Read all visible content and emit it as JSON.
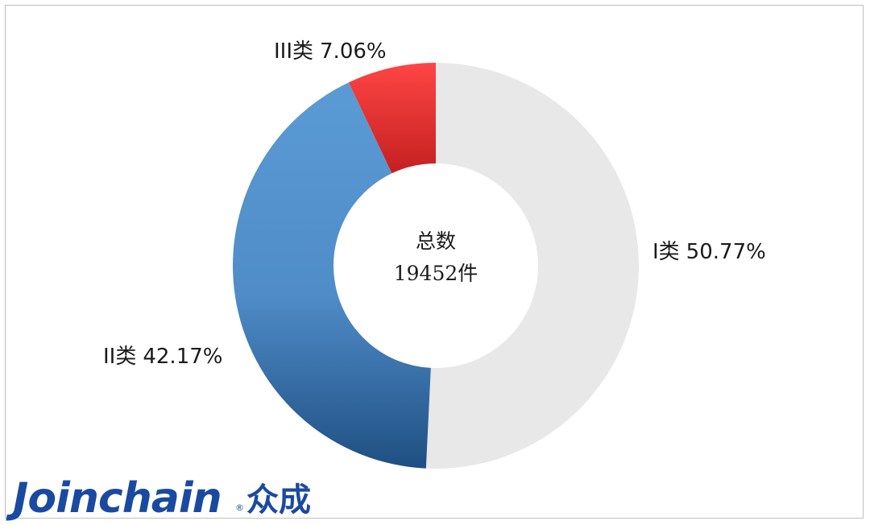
{
  "chart_data": {
    "type": "pie",
    "style": "donut",
    "center_label": "总数",
    "center_value": "19452件",
    "slices": [
      {
        "label": "I类",
        "pct_text": "50.77%",
        "value": 50.77,
        "color": "#e8e8e8"
      },
      {
        "label": "II类",
        "pct_text": "42.17%",
        "value": 42.17,
        "color": "#5b9bd5",
        "color_dark": "#1f4f82"
      },
      {
        "label": "III类",
        "pct_text": "7.06%",
        "value": 7.06,
        "color": "#f44a4a",
        "color_dark": "#c42020"
      }
    ]
  },
  "logo": {
    "latin": "Joinchain",
    "reg_mark": "®",
    "cjk": "众成",
    "color": "#1a4aa0"
  }
}
